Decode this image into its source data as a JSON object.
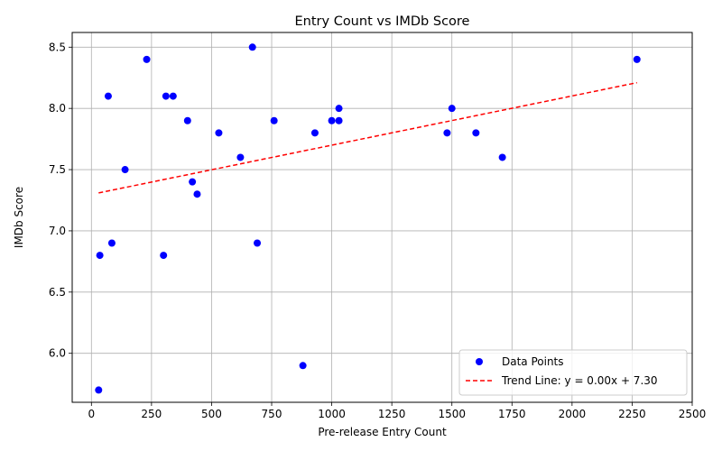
{
  "chart_data": {
    "type": "scatter",
    "title": "Entry Count vs IMDb Score",
    "xlabel": "Pre-release Entry Count",
    "ylabel": "IMDb Score",
    "xlim": [
      -80,
      2500
    ],
    "ylim": [
      5.6,
      8.62
    ],
    "xticks": [
      0,
      250,
      500,
      750,
      1000,
      1250,
      1500,
      1750,
      2000,
      2250,
      2500
    ],
    "yticks": [
      6.0,
      6.5,
      7.0,
      7.5,
      8.0,
      8.5
    ],
    "grid": true,
    "legend_position": "bottom-right",
    "series": [
      {
        "name": "Data Points",
        "kind": "scatter",
        "color": "#0000ff",
        "x": [
          30,
          35,
          70,
          85,
          140,
          230,
          300,
          310,
          340,
          400,
          420,
          440,
          530,
          620,
          670,
          690,
          760,
          880,
          930,
          1000,
          1030,
          1030,
          1480,
          1500,
          1600,
          1710,
          2270
        ],
        "y": [
          5.7,
          6.8,
          8.1,
          6.9,
          7.5,
          8.4,
          6.8,
          8.1,
          8.1,
          7.9,
          7.4,
          7.3,
          7.8,
          7.6,
          8.5,
          6.9,
          7.9,
          5.9,
          7.8,
          7.9,
          8.0,
          7.9,
          7.8,
          8.0,
          7.8,
          7.6,
          8.4
        ]
      },
      {
        "name": "Trend Line: y = 0.00x + 7.30",
        "kind": "line",
        "color": "#ff0000",
        "dashed": true,
        "x": [
          30,
          2270
        ],
        "y": [
          7.31,
          8.21
        ]
      }
    ]
  }
}
